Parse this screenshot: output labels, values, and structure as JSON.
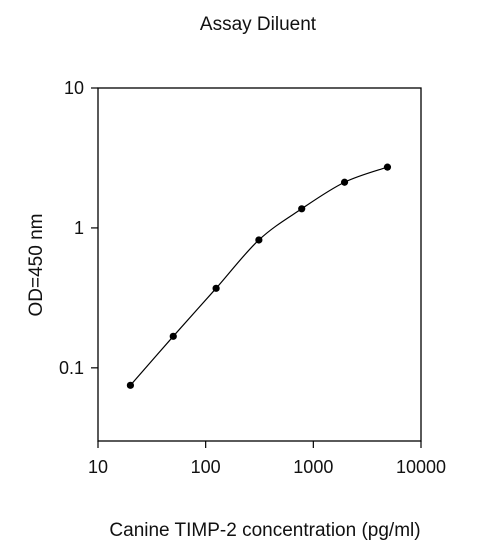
{
  "chart_data": {
    "type": "line",
    "title": "Assay Diluent",
    "xlabel": "Canine TIMP-2 concentration (pg/ml)",
    "ylabel": "OD=450 nm",
    "xscale": "log",
    "yscale": "log",
    "xlim": [
      10,
      10000
    ],
    "ylim": [
      0.03,
      10
    ],
    "x_ticks": [
      {
        "value": 10,
        "label": "10"
      },
      {
        "value": 100,
        "label": "100"
      },
      {
        "value": 1000,
        "label": "1000"
      },
      {
        "value": 10000,
        "label": "10000"
      }
    ],
    "y_ticks": [
      {
        "value": 0.1,
        "label": "0.1"
      },
      {
        "value": 1,
        "label": "1"
      },
      {
        "value": 10,
        "label": "10"
      }
    ],
    "grid": false,
    "legend": "none",
    "series": [
      {
        "color": "#000000",
        "marker": "circle",
        "x": [
          20,
          50,
          125,
          312,
          780,
          1950,
          4880
        ],
        "y": [
          0.075,
          0.168,
          0.37,
          0.82,
          1.37,
          2.12,
          2.72
        ]
      }
    ]
  }
}
